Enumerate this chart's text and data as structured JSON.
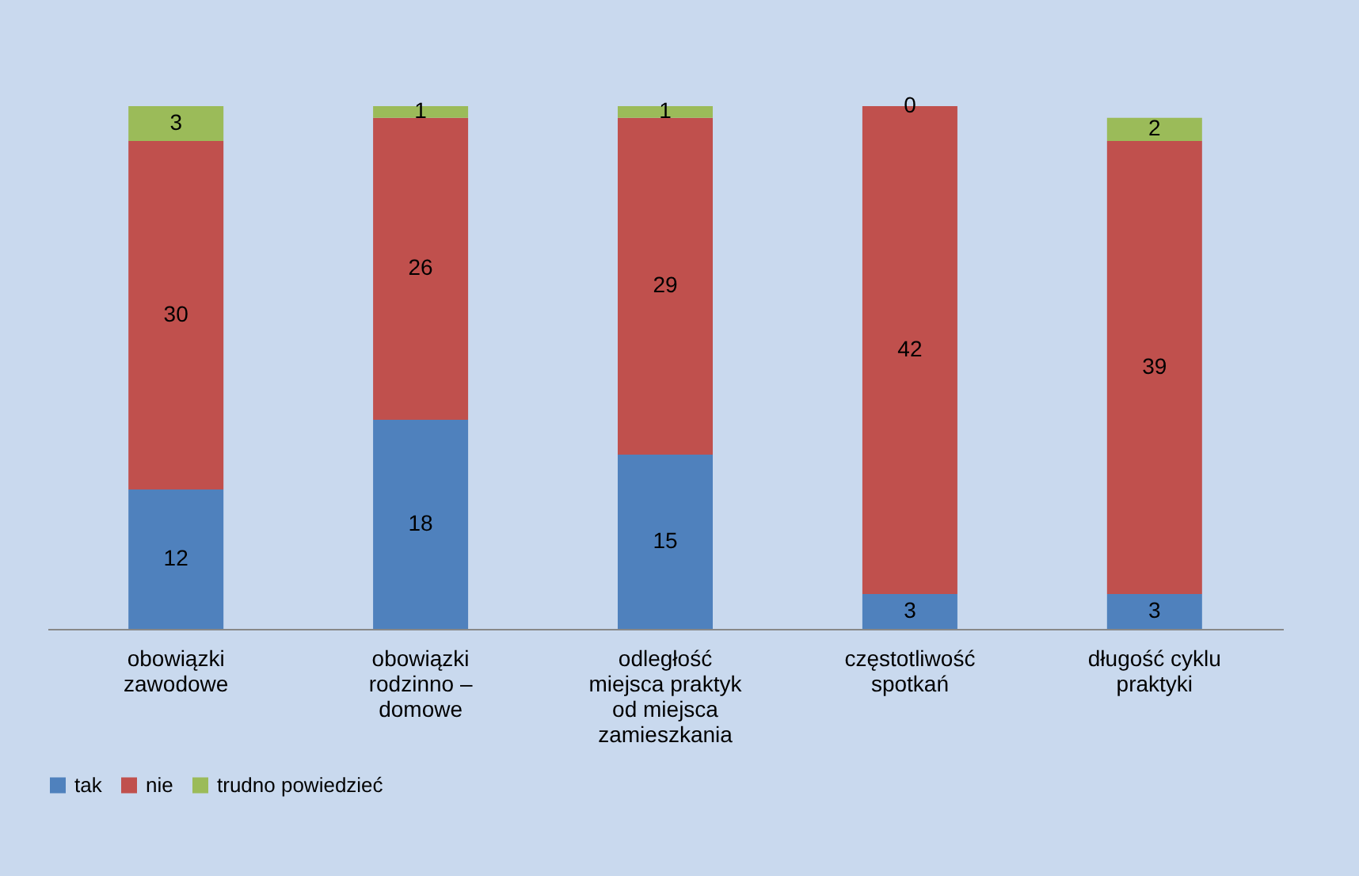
{
  "chart_data": {
    "type": "bar",
    "stacked": true,
    "data_labels": true,
    "legend": "bottom",
    "categories": [
      "obowiązki zawodowe",
      "obowiązki rodzinno – domowe",
      "odległość miejsca praktyk od miejsca zamieszkania",
      "częstotliwość spotkań",
      "długość cyklu praktyki"
    ],
    "series": [
      {
        "name": "tak",
        "color": "#4f81bd",
        "values": [
          12,
          18,
          15,
          3,
          3
        ]
      },
      {
        "name": "nie",
        "color": "#c0504d",
        "values": [
          30,
          26,
          29,
          42,
          39
        ]
      },
      {
        "name": "trudno powiedzieć",
        "color": "#9bbb59",
        "values": [
          3,
          1,
          1,
          0,
          2
        ]
      }
    ]
  }
}
